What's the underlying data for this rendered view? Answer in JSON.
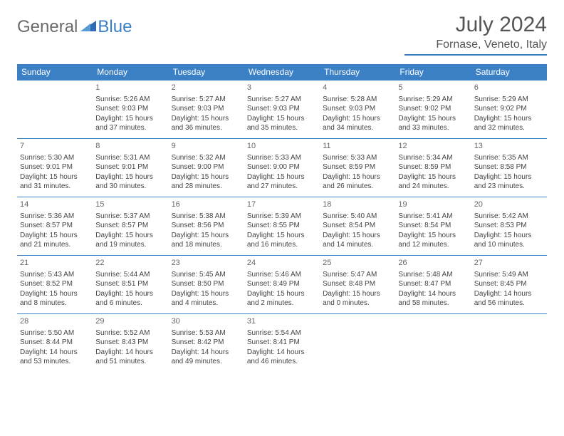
{
  "logo": {
    "general": "General",
    "blue": "Blue"
  },
  "title": "July 2024",
  "location": "Fornase, Veneto, Italy",
  "colors": {
    "header_bg": "#3b7fc4",
    "header_fg": "#ffffff",
    "border": "#3b7fc4",
    "text": "#444444",
    "title_color": "#555555",
    "background": "#ffffff"
  },
  "typography": {
    "title_fontsize": 30,
    "location_fontsize": 16,
    "dayheader_fontsize": 12,
    "cell_fontsize": 10,
    "daynum_fontsize": 11
  },
  "day_headers": [
    "Sunday",
    "Monday",
    "Tuesday",
    "Wednesday",
    "Thursday",
    "Friday",
    "Saturday"
  ],
  "weeks": [
    [
      null,
      {
        "n": "1",
        "sr": "5:26 AM",
        "ss": "9:03 PM",
        "dl": "15 hours and 37 minutes."
      },
      {
        "n": "2",
        "sr": "5:27 AM",
        "ss": "9:03 PM",
        "dl": "15 hours and 36 minutes."
      },
      {
        "n": "3",
        "sr": "5:27 AM",
        "ss": "9:03 PM",
        "dl": "15 hours and 35 minutes."
      },
      {
        "n": "4",
        "sr": "5:28 AM",
        "ss": "9:03 PM",
        "dl": "15 hours and 34 minutes."
      },
      {
        "n": "5",
        "sr": "5:29 AM",
        "ss": "9:02 PM",
        "dl": "15 hours and 33 minutes."
      },
      {
        "n": "6",
        "sr": "5:29 AM",
        "ss": "9:02 PM",
        "dl": "15 hours and 32 minutes."
      }
    ],
    [
      {
        "n": "7",
        "sr": "5:30 AM",
        "ss": "9:01 PM",
        "dl": "15 hours and 31 minutes."
      },
      {
        "n": "8",
        "sr": "5:31 AM",
        "ss": "9:01 PM",
        "dl": "15 hours and 30 minutes."
      },
      {
        "n": "9",
        "sr": "5:32 AM",
        "ss": "9:00 PM",
        "dl": "15 hours and 28 minutes."
      },
      {
        "n": "10",
        "sr": "5:33 AM",
        "ss": "9:00 PM",
        "dl": "15 hours and 27 minutes."
      },
      {
        "n": "11",
        "sr": "5:33 AM",
        "ss": "8:59 PM",
        "dl": "15 hours and 26 minutes."
      },
      {
        "n": "12",
        "sr": "5:34 AM",
        "ss": "8:59 PM",
        "dl": "15 hours and 24 minutes."
      },
      {
        "n": "13",
        "sr": "5:35 AM",
        "ss": "8:58 PM",
        "dl": "15 hours and 23 minutes."
      }
    ],
    [
      {
        "n": "14",
        "sr": "5:36 AM",
        "ss": "8:57 PM",
        "dl": "15 hours and 21 minutes."
      },
      {
        "n": "15",
        "sr": "5:37 AM",
        "ss": "8:57 PM",
        "dl": "15 hours and 19 minutes."
      },
      {
        "n": "16",
        "sr": "5:38 AM",
        "ss": "8:56 PM",
        "dl": "15 hours and 18 minutes."
      },
      {
        "n": "17",
        "sr": "5:39 AM",
        "ss": "8:55 PM",
        "dl": "15 hours and 16 minutes."
      },
      {
        "n": "18",
        "sr": "5:40 AM",
        "ss": "8:54 PM",
        "dl": "15 hours and 14 minutes."
      },
      {
        "n": "19",
        "sr": "5:41 AM",
        "ss": "8:54 PM",
        "dl": "15 hours and 12 minutes."
      },
      {
        "n": "20",
        "sr": "5:42 AM",
        "ss": "8:53 PM",
        "dl": "15 hours and 10 minutes."
      }
    ],
    [
      {
        "n": "21",
        "sr": "5:43 AM",
        "ss": "8:52 PM",
        "dl": "15 hours and 8 minutes."
      },
      {
        "n": "22",
        "sr": "5:44 AM",
        "ss": "8:51 PM",
        "dl": "15 hours and 6 minutes."
      },
      {
        "n": "23",
        "sr": "5:45 AM",
        "ss": "8:50 PM",
        "dl": "15 hours and 4 minutes."
      },
      {
        "n": "24",
        "sr": "5:46 AM",
        "ss": "8:49 PM",
        "dl": "15 hours and 2 minutes."
      },
      {
        "n": "25",
        "sr": "5:47 AM",
        "ss": "8:48 PM",
        "dl": "15 hours and 0 minutes."
      },
      {
        "n": "26",
        "sr": "5:48 AM",
        "ss": "8:47 PM",
        "dl": "14 hours and 58 minutes."
      },
      {
        "n": "27",
        "sr": "5:49 AM",
        "ss": "8:45 PM",
        "dl": "14 hours and 56 minutes."
      }
    ],
    [
      {
        "n": "28",
        "sr": "5:50 AM",
        "ss": "8:44 PM",
        "dl": "14 hours and 53 minutes."
      },
      {
        "n": "29",
        "sr": "5:52 AM",
        "ss": "8:43 PM",
        "dl": "14 hours and 51 minutes."
      },
      {
        "n": "30",
        "sr": "5:53 AM",
        "ss": "8:42 PM",
        "dl": "14 hours and 49 minutes."
      },
      {
        "n": "31",
        "sr": "5:54 AM",
        "ss": "8:41 PM",
        "dl": "14 hours and 46 minutes."
      },
      null,
      null,
      null
    ]
  ],
  "labels": {
    "sunrise": "Sunrise:",
    "sunset": "Sunset:",
    "daylight": "Daylight:"
  }
}
